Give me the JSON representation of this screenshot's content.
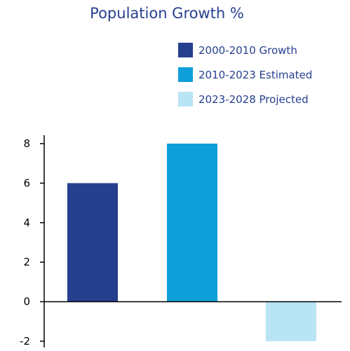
{
  "chart_data": {
    "type": "bar",
    "title": "Population Growth %",
    "xlabel": "",
    "ylabel": "",
    "ylim": [
      -2,
      8
    ],
    "yticks": [
      "8",
      "6",
      "4",
      "2",
      "0",
      "-2"
    ],
    "ytick_values": [
      8,
      6,
      4,
      2,
      0,
      -2
    ],
    "grid": false,
    "legend_position": "top-right",
    "series": [
      {
        "name": "2000-2010 Growth",
        "value": 6,
        "color": "#263f8f"
      },
      {
        "name": "2010-2023 Estimated",
        "value": 8,
        "color": "#0e9fd9"
      },
      {
        "name": "2023-2028 Projected",
        "value": -2,
        "color": "#b9e4f6"
      }
    ],
    "title_color": "#263f8f",
    "legend_text_color": "#263f8f",
    "axis_color": "#000000"
  }
}
